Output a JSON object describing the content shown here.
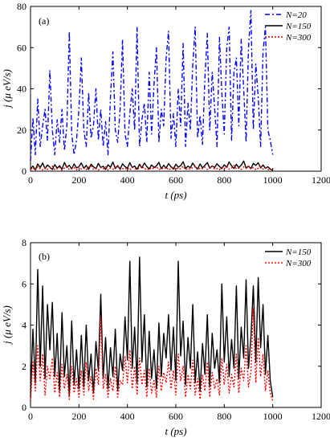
{
  "colors": {
    "n20": "#0000ff",
    "n150": "#000000",
    "n300": "#ff0000"
  },
  "chart_data": [
    {
      "type": "line",
      "panel_label": "(a)",
      "xlabel": "t (ps)",
      "ylabel": "j (μ eV/s)",
      "xlim": [
        0,
        1200
      ],
      "ylim": [
        0,
        80
      ],
      "xticks": [
        0,
        200,
        400,
        600,
        800,
        1000,
        1200
      ],
      "yticks": [
        0,
        20,
        40,
        60,
        80
      ],
      "legend_position": "top-right",
      "x": [
        0,
        10,
        20,
        30,
        40,
        50,
        60,
        70,
        80,
        90,
        100,
        110,
        120,
        130,
        140,
        150,
        160,
        170,
        180,
        190,
        200,
        210,
        220,
        230,
        240,
        250,
        260,
        270,
        280,
        290,
        300,
        310,
        320,
        330,
        340,
        350,
        360,
        370,
        380,
        390,
        400,
        410,
        420,
        430,
        440,
        450,
        460,
        470,
        480,
        490,
        500,
        510,
        520,
        530,
        540,
        550,
        560,
        570,
        580,
        590,
        600,
        610,
        620,
        630,
        640,
        650,
        660,
        670,
        680,
        690,
        700,
        710,
        720,
        730,
        740,
        750,
        760,
        770,
        780,
        790,
        800,
        810,
        820,
        830,
        840,
        850,
        860,
        870,
        880,
        890,
        900,
        910,
        920,
        930,
        940,
        950,
        960,
        970,
        980,
        990,
        1000
      ],
      "series": [
        {
          "name": "N=20",
          "color_key": "n20",
          "dash": "6,3,2,3",
          "values": [
            5,
            26,
            8,
            35,
            12,
            22,
            30,
            15,
            49,
            20,
            8,
            25,
            14,
            30,
            10,
            22,
            68,
            18,
            8,
            15,
            30,
            55,
            20,
            12,
            38,
            16,
            22,
            40,
            15,
            30,
            12,
            24,
            8,
            36,
            58,
            20,
            14,
            30,
            64,
            18,
            12,
            28,
            40,
            20,
            70,
            12,
            25,
            33,
            14,
            48,
            18,
            42,
            60,
            14,
            30,
            22,
            55,
            68,
            16,
            28,
            12,
            40,
            22,
            62,
            12,
            33,
            20,
            52,
            70,
            16,
            27,
            13,
            45,
            67,
            20,
            48,
            31,
            12,
            65,
            38,
            18,
            60,
            70,
            15,
            48,
            55,
            22,
            64,
            40,
            14,
            60,
            78,
            20,
            52,
            36,
            12,
            58,
            70,
            20,
            15,
            8
          ]
        },
        {
          "name": "N=150",
          "color_key": "n150",
          "dash": "",
          "values": [
            1,
            2.5,
            0.6,
            3.5,
            1.8,
            4,
            1.2,
            3,
            2,
            0.8,
            3.2,
            1.5,
            2.6,
            0.9,
            4.2,
            1.8,
            2.9,
            1.1,
            3.5,
            1.6,
            2.2,
            4,
            1.4,
            2.8,
            0.9,
            3.4,
            2.1,
            1.2,
            3.8,
            1.7,
            2.4,
            0.8,
            3.1,
            1.9,
            4.4,
            1.3,
            2.7,
            1,
            3.6,
            2.2,
            1.5,
            4.1,
            1.8,
            2.5,
            0.9,
            3.3,
            1.6,
            4,
            2.3,
            1.1,
            3,
            1.8,
            2.6,
            4.3,
            1.2,
            2.9,
            1.5,
            3.7,
            2.1,
            1,
            3.4,
            1.9,
            2.7,
            4.6,
            1.3,
            2.4,
            1.7,
            3.9,
            2.2,
            1.1,
            3.5,
            1.6,
            2.8,
            4.2,
            1.4,
            2.5,
            1.8,
            3.6,
            2.3,
            1.2,
            3.1,
            1.9,
            4.5,
            2.6,
            1.3,
            3.3,
            1.7,
            2.9,
            4.9,
            1.5,
            2.4,
            1.2,
            3.8,
            2.8,
            4.1,
            1.6,
            3,
            1.4,
            2.2,
            1,
            0.5
          ]
        },
        {
          "name": "N=300",
          "color_key": "n300",
          "dash": "2,2",
          "values": [
            0.8,
            1.6,
            0.4,
            2.2,
            1.1,
            0.6,
            1.8,
            0.9,
            1.4,
            2.5,
            0.7,
            1.2,
            1.9,
            0.5,
            1.5,
            2.3,
            0.8,
            1.1,
            1.7,
            0.6,
            2.1,
            1,
            1.4,
            0.7,
            1.9,
            2.6,
            0.9,
            1.3,
            0.5,
            1.8,
            1.1,
            2.2,
            0.6,
            1.5,
            0.9,
            1.9,
            2.4,
            0.7,
            1.3,
            1,
            1.7,
            0.5,
            2,
            1.2,
            0.8,
            1.6,
            2.5,
            0.9,
            1.4,
            0.6,
            1.8,
            1.1,
            2.3,
            0.7,
            1.5,
            1,
            1.9,
            0.6,
            1.3,
            2.1,
            0.8,
            1.6,
            1.1,
            2.4,
            0.7,
            1.4,
            0.9,
            1.8,
            2.2,
            0.6,
            1.5,
            1.2,
            2,
            0.8,
            1.7,
            2.6,
            1,
            1.3,
            0.7,
            1.9,
            1.2,
            2.3,
            0.9,
            1.6,
            2.8,
            1.1,
            1.5,
            0.8,
            2.1,
            1.3,
            2.5,
            1,
            1.8,
            0.7,
            1.4,
            2.2,
            1,
            1.6,
            0.8,
            0.9,
            0.4
          ]
        }
      ]
    },
    {
      "type": "line",
      "panel_label": "(b)",
      "xlabel": "t (ps)",
      "ylabel": "j (μ eV/s)",
      "xlim": [
        0,
        1200
      ],
      "ylim": [
        0,
        8
      ],
      "xticks": [
        0,
        200,
        400,
        600,
        800,
        1000,
        1200
      ],
      "yticks": [
        0,
        2,
        4,
        6,
        8
      ],
      "legend_position": "top-right",
      "x": [
        0,
        10,
        20,
        30,
        40,
        50,
        60,
        70,
        80,
        90,
        100,
        110,
        120,
        130,
        140,
        150,
        160,
        170,
        180,
        190,
        200,
        210,
        220,
        230,
        240,
        250,
        260,
        270,
        280,
        290,
        300,
        310,
        320,
        330,
        340,
        350,
        360,
        370,
        380,
        390,
        400,
        410,
        420,
        430,
        440,
        450,
        460,
        470,
        480,
        490,
        500,
        510,
        520,
        530,
        540,
        550,
        560,
        570,
        580,
        590,
        600,
        610,
        620,
        630,
        640,
        650,
        660,
        670,
        680,
        690,
        700,
        710,
        720,
        730,
        740,
        750,
        760,
        770,
        780,
        790,
        800,
        810,
        820,
        830,
        840,
        850,
        860,
        870,
        880,
        890,
        900,
        910,
        920,
        930,
        940,
        950,
        960,
        970,
        980,
        990,
        1000
      ],
      "series": [
        {
          "name": "N=150",
          "color_key": "n150",
          "dash": "",
          "values": [
            0.5,
            3.8,
            1.2,
            6.7,
            2,
            5.9,
            1.4,
            5,
            2.8,
            5.1,
            1.5,
            3.6,
            0.8,
            4.6,
            1.5,
            3,
            0.6,
            4.2,
            1.1,
            2.8,
            0.9,
            3.5,
            1,
            4,
            1.3,
            2.6,
            0.7,
            3.2,
            1.8,
            5.5,
            1.4,
            3.4,
            0.9,
            2.9,
            1.5,
            3.8,
            0.8,
            2.6,
            1.8,
            4.4,
            2.3,
            7.1,
            1.9,
            3.9,
            1.2,
            7.3,
            2.2,
            4.5,
            1,
            3.7,
            1.4,
            2.8,
            0.9,
            4.1,
            1.5,
            3.6,
            2.4,
            4.5,
            1.8,
            3.9,
            1.3,
            7.1,
            2.5,
            4.2,
            1.1,
            3.4,
            1.9,
            5,
            1.2,
            2.7,
            0.8,
            3.1,
            1.6,
            4.5,
            1,
            3.6,
            1.9,
            2.8,
            1.2,
            6,
            2.2,
            4.4,
            1.5,
            3.3,
            1.9,
            5.9,
            1.4,
            3.9,
            2.4,
            6.2,
            1.9,
            3.4,
            5.9,
            2.2,
            6.3,
            2.9,
            5,
            1.6,
            3.5,
            1.3,
            0.5
          ]
        },
        {
          "name": "N=300",
          "color_key": "n300",
          "dash": "2,2",
          "values": [
            0.3,
            2.2,
            0.8,
            3,
            1.3,
            2.6,
            0.6,
            2,
            1.4,
            2.4,
            0.7,
            1.7,
            0.5,
            2.1,
            0.9,
            1.6,
            0.4,
            2,
            0.7,
            1.4,
            0.5,
            1.8,
            0.6,
            2.2,
            0.8,
            1.5,
            0.4,
            1.9,
            1.1,
            4.4,
            0.9,
            1.6,
            0.5,
            1.4,
            0.8,
            2,
            0.5,
            1.3,
            1.1,
            2.5,
            1.2,
            2.8,
            0.9,
            2,
            0.6,
            2.4,
            1.1,
            1.8,
            0.5,
            1.9,
            0.7,
            1.3,
            0.5,
            2,
            0.8,
            1.7,
            1.2,
            2.2,
            0.9,
            1.8,
            0.6,
            2.6,
            1.3,
            2,
            0.5,
            1.6,
            0.9,
            2.3,
            0.6,
            1.4,
            0.4,
            1.6,
            0.8,
            2.2,
            0.5,
            1.7,
            0.9,
            1.4,
            0.6,
            2.4,
            1.1,
            2.1,
            0.7,
            1.6,
            1,
            2.6,
            0.7,
            1.9,
            1.3,
            3,
            1,
            1.7,
            4.8,
            1.2,
            3.4,
            1.5,
            2.6,
            0.8,
            1.8,
            0.7,
            0.3
          ]
        }
      ]
    }
  ]
}
